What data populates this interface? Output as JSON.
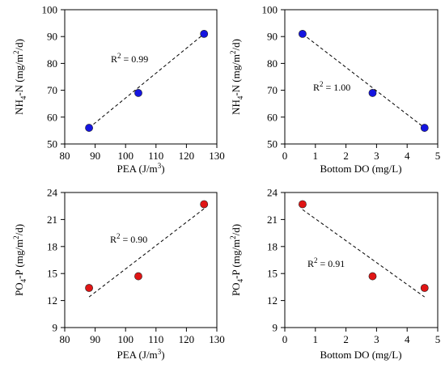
{
  "chart_data": [
    {
      "type": "scatter",
      "xlabel": {
        "main": "PEA (J/m",
        "sup": "3",
        "end": ")"
      },
      "ylabel": {
        "a": "NH",
        "sub": "4",
        "b": "-N (mg/m",
        "sup": "2",
        "c": "/d)"
      },
      "xlim": [
        80,
        130
      ],
      "ylim": [
        50,
        100
      ],
      "xticks": [
        80,
        90,
        100,
        110,
        120,
        130
      ],
      "yticks": [
        50,
        60,
        70,
        80,
        90,
        100
      ],
      "points": [
        {
          "x": 88,
          "y": 56
        },
        {
          "x": 104.2,
          "y": 69
        },
        {
          "x": 125.8,
          "y": 91
        }
      ],
      "trend": [
        {
          "x": 88,
          "y": 56
        },
        {
          "x": 125.8,
          "y": 91
        }
      ],
      "r2": "= 0.99",
      "color": "#1515e0"
    },
    {
      "type": "scatter",
      "xlabel": {
        "main": "Bottom DO (mg/L)",
        "sup": "",
        "end": ""
      },
      "ylabel": {
        "a": "NH",
        "sub": "4",
        "b": "-N (mg/m",
        "sup": "2",
        "c": "/d)"
      },
      "xlim": [
        0,
        5
      ],
      "ylim": [
        50,
        100
      ],
      "xticks": [
        0,
        1,
        2,
        3,
        4,
        5
      ],
      "yticks": [
        50,
        60,
        70,
        80,
        90,
        100
      ],
      "points": [
        {
          "x": 0.58,
          "y": 91
        },
        {
          "x": 2.87,
          "y": 69
        },
        {
          "x": 4.57,
          "y": 56
        }
      ],
      "trend": [
        {
          "x": 0.58,
          "y": 91
        },
        {
          "x": 4.57,
          "y": 56
        }
      ],
      "r2": "= 1.00",
      "color": "#1515e0"
    },
    {
      "type": "scatter",
      "xlabel": {
        "main": "PEA (J/m",
        "sup": "3",
        "end": ")"
      },
      "ylabel": {
        "a": "PO",
        "sub": "4",
        "b": "-P (mg/m",
        "sup": "2",
        "c": "/d)"
      },
      "xlim": [
        80,
        130
      ],
      "ylim": [
        9,
        24
      ],
      "xticks": [
        80,
        90,
        100,
        110,
        120,
        130
      ],
      "yticks": [
        9,
        12,
        15,
        18,
        21,
        24
      ],
      "points": [
        {
          "x": 88,
          "y": 13.4
        },
        {
          "x": 104.2,
          "y": 14.7
        },
        {
          "x": 125.8,
          "y": 22.7
        }
      ],
      "trend": [
        {
          "x": 88,
          "y": 12.4
        },
        {
          "x": 125.8,
          "y": 22.2
        }
      ],
      "r2": "= 0.90",
      "color": "#e01515"
    },
    {
      "type": "scatter",
      "xlabel": {
        "main": "Bottom DO (mg/L)",
        "sup": "",
        "end": ""
      },
      "ylabel": {
        "a": "PO",
        "sub": "4",
        "b": "-P (mg/m",
        "sup": "2",
        "c": "/d)"
      },
      "xlim": [
        0,
        5
      ],
      "ylim": [
        9,
        24
      ],
      "xticks": [
        0,
        1,
        2,
        3,
        4,
        5
      ],
      "yticks": [
        9,
        12,
        15,
        18,
        21,
        24
      ],
      "points": [
        {
          "x": 0.58,
          "y": 22.7
        },
        {
          "x": 2.87,
          "y": 14.7
        },
        {
          "x": 4.57,
          "y": 13.4
        }
      ],
      "trend": [
        {
          "x": 0.58,
          "y": 22.1
        },
        {
          "x": 4.57,
          "y": 12.4
        }
      ],
      "r2": "= 0.91",
      "color": "#e01515"
    }
  ]
}
